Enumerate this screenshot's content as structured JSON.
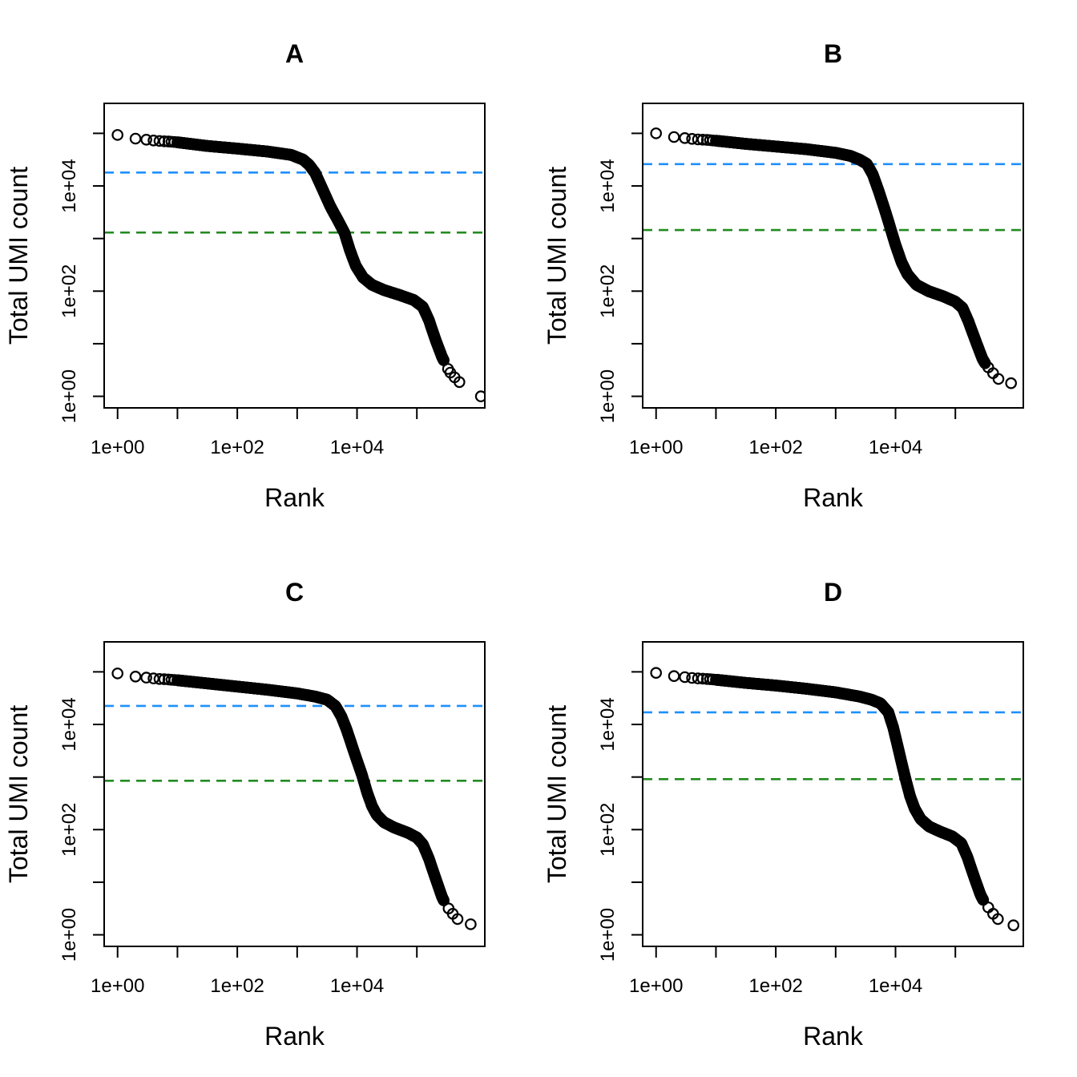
{
  "figure": {
    "background": "#ffffff"
  },
  "chart_data": {
    "type": "scatter",
    "description": "Barcode rank knee plots, open black circles on log-log axes, horizontal dashed knee (blue) and inflection (green) lines",
    "log_scale": {
      "x": true,
      "y": true
    },
    "xlabel": "Rank",
    "ylabel": "Total UMI count",
    "x_ticks": {
      "decades": [
        0,
        1,
        2,
        3,
        4,
        5
      ],
      "labels": [
        "1e+00",
        "",
        "1e+02",
        "",
        "1e+04",
        ""
      ]
    },
    "y_ticks": {
      "decades": [
        0,
        1,
        2,
        3,
        4,
        5
      ],
      "labels": [
        "1e+00",
        "",
        "1e+02",
        "",
        "1e+04",
        ""
      ]
    },
    "x_range_log10": [
      -0.224,
      6.135
    ],
    "y_range_log10": [
      -0.22,
      5.57
    ],
    "grid": false,
    "legend_position": "none",
    "colors": {
      "points": "#000000",
      "knee_line": "#1E90FF",
      "inflection_line": "#228B22",
      "axis": "#000000"
    },
    "head_decades": [
      0,
      0.3,
      0.48,
      0.6,
      0.7,
      0.78,
      0.85,
      0.9,
      0.95
    ],
    "dense_step": 0.008,
    "panels": [
      {
        "title": "A",
        "knee": 18000,
        "inflection": 1300,
        "dense_end": 5.45,
        "curve_log10": [
          [
            0,
            4.97
          ],
          [
            0.3,
            4.9
          ],
          [
            0.48,
            4.88
          ],
          [
            0.6,
            4.865
          ],
          [
            0.7,
            4.855
          ],
          [
            0.78,
            4.85
          ],
          [
            0.85,
            4.845
          ],
          [
            0.9,
            4.84
          ],
          [
            0.95,
            4.835
          ],
          [
            1,
            4.83
          ],
          [
            1.5,
            4.76
          ],
          [
            2,
            4.71
          ],
          [
            2.5,
            4.655
          ],
          [
            2.9,
            4.59
          ],
          [
            3.1,
            4.5
          ],
          [
            3.2,
            4.4
          ],
          [
            3.3,
            4.25
          ],
          [
            3.42,
            3.95
          ],
          [
            3.55,
            3.62
          ],
          [
            3.68,
            3.35
          ],
          [
            3.79,
            3.11
          ],
          [
            3.88,
            2.78
          ],
          [
            3.98,
            2.48
          ],
          [
            4.1,
            2.26
          ],
          [
            4.25,
            2.12
          ],
          [
            4.45,
            2.02
          ],
          [
            4.7,
            1.93
          ],
          [
            4.95,
            1.83
          ],
          [
            5.1,
            1.7
          ],
          [
            5.2,
            1.45
          ],
          [
            5.32,
            1.05
          ],
          [
            5.42,
            0.75
          ],
          [
            5.45,
            0.68
          ]
        ],
        "tail_log10": [
          [
            5.52,
            0.52
          ],
          [
            5.56,
            0.45
          ],
          [
            5.63,
            0.36
          ],
          [
            5.71,
            0.27
          ],
          [
            6.07,
            0.0
          ]
        ]
      },
      {
        "title": "B",
        "knee": 26000,
        "inflection": 1450,
        "dense_end": 5.5,
        "curve_log10": [
          [
            0,
            5.0
          ],
          [
            0.3,
            4.93
          ],
          [
            0.48,
            4.91
          ],
          [
            0.6,
            4.895
          ],
          [
            0.7,
            4.885
          ],
          [
            0.78,
            4.88
          ],
          [
            0.85,
            4.875
          ],
          [
            0.9,
            4.87
          ],
          [
            0.95,
            4.865
          ],
          [
            1,
            4.86
          ],
          [
            1.5,
            4.8
          ],
          [
            2,
            4.75
          ],
          [
            2.5,
            4.7
          ],
          [
            3,
            4.63
          ],
          [
            3.25,
            4.57
          ],
          [
            3.4,
            4.5
          ],
          [
            3.52,
            4.42
          ],
          [
            3.62,
            4.22
          ],
          [
            3.72,
            3.9
          ],
          [
            3.82,
            3.55
          ],
          [
            3.92,
            3.18
          ],
          [
            4,
            2.88
          ],
          [
            4.1,
            2.55
          ],
          [
            4.2,
            2.32
          ],
          [
            4.35,
            2.12
          ],
          [
            4.55,
            2.0
          ],
          [
            4.8,
            1.9
          ],
          [
            5,
            1.8
          ],
          [
            5.12,
            1.68
          ],
          [
            5.22,
            1.42
          ],
          [
            5.35,
            1.02
          ],
          [
            5.45,
            0.72
          ],
          [
            5.5,
            0.62
          ]
        ],
        "tail_log10": [
          [
            5.55,
            0.55
          ],
          [
            5.63,
            0.44
          ],
          [
            5.72,
            0.33
          ],
          [
            5.93,
            0.25
          ]
        ]
      },
      {
        "title": "C",
        "knee": 22500,
        "inflection": 850,
        "dense_end": 5.45,
        "curve_log10": [
          [
            0,
            4.97
          ],
          [
            0.3,
            4.91
          ],
          [
            0.48,
            4.89
          ],
          [
            0.6,
            4.875
          ],
          [
            0.7,
            4.865
          ],
          [
            0.78,
            4.86
          ],
          [
            0.85,
            4.855
          ],
          [
            0.9,
            4.85
          ],
          [
            0.95,
            4.845
          ],
          [
            1,
            4.84
          ],
          [
            1.5,
            4.78
          ],
          [
            2,
            4.72
          ],
          [
            2.5,
            4.66
          ],
          [
            3,
            4.59
          ],
          [
            3.3,
            4.53
          ],
          [
            3.5,
            4.47
          ],
          [
            3.64,
            4.35
          ],
          [
            3.74,
            4.15
          ],
          [
            3.82,
            3.92
          ],
          [
            3.9,
            3.65
          ],
          [
            3.98,
            3.38
          ],
          [
            4.08,
            3.05
          ],
          [
            4.17,
            2.7
          ],
          [
            4.25,
            2.45
          ],
          [
            4.33,
            2.28
          ],
          [
            4.45,
            2.14
          ],
          [
            4.62,
            2.04
          ],
          [
            4.85,
            1.94
          ],
          [
            5,
            1.85
          ],
          [
            5.1,
            1.72
          ],
          [
            5.2,
            1.45
          ],
          [
            5.32,
            1.05
          ],
          [
            5.42,
            0.72
          ],
          [
            5.45,
            0.65
          ]
        ],
        "tail_log10": [
          [
            5.53,
            0.5
          ],
          [
            5.6,
            0.4
          ],
          [
            5.68,
            0.3
          ],
          [
            5.9,
            0.2
          ]
        ]
      },
      {
        "title": "D",
        "knee": 17000,
        "inflection": 910,
        "dense_end": 5.47,
        "curve_log10": [
          [
            0,
            4.98
          ],
          [
            0.3,
            4.92
          ],
          [
            0.48,
            4.9
          ],
          [
            0.6,
            4.885
          ],
          [
            0.7,
            4.875
          ],
          [
            0.78,
            4.87
          ],
          [
            0.85,
            4.865
          ],
          [
            0.9,
            4.86
          ],
          [
            0.95,
            4.855
          ],
          [
            1,
            4.85
          ],
          [
            1.5,
            4.79
          ],
          [
            2,
            4.74
          ],
          [
            2.5,
            4.68
          ],
          [
            3,
            4.61
          ],
          [
            3.4,
            4.53
          ],
          [
            3.6,
            4.47
          ],
          [
            3.75,
            4.4
          ],
          [
            3.88,
            4.23
          ],
          [
            3.96,
            3.95
          ],
          [
            4.03,
            3.62
          ],
          [
            4.1,
            3.28
          ],
          [
            4.17,
            2.95
          ],
          [
            4.24,
            2.65
          ],
          [
            4.32,
            2.4
          ],
          [
            4.42,
            2.2
          ],
          [
            4.56,
            2.06
          ],
          [
            4.75,
            1.96
          ],
          [
            4.95,
            1.87
          ],
          [
            5.1,
            1.74
          ],
          [
            5.2,
            1.48
          ],
          [
            5.32,
            1.08
          ],
          [
            5.42,
            0.76
          ],
          [
            5.47,
            0.65
          ]
        ],
        "tail_log10": [
          [
            5.55,
            0.52
          ],
          [
            5.63,
            0.4
          ],
          [
            5.71,
            0.3
          ],
          [
            5.97,
            0.18
          ]
        ]
      }
    ]
  }
}
